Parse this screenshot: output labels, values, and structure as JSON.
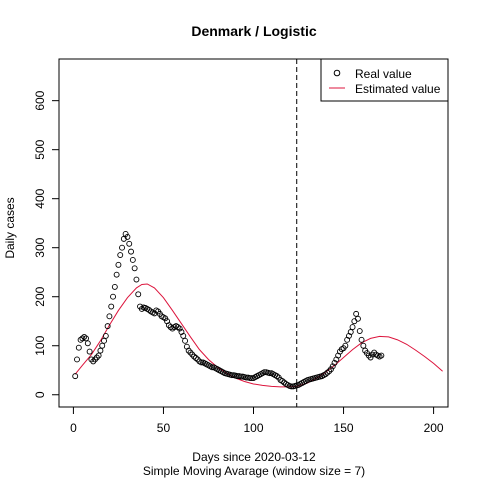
{
  "chart_data": {
    "type": "line",
    "title": "Denmark / Logistic",
    "xlabel": "Days since 2020-03-12",
    "subtitle": "Simple Moving Avarage (window size = 7)",
    "ylabel": "Daily cases",
    "xlim": [
      -8,
      208
    ],
    "ylim": [
      -25,
      685
    ],
    "x_ticks": [
      0,
      50,
      100,
      150,
      200
    ],
    "y_ticks": [
      0,
      100,
      200,
      300,
      400,
      500,
      600
    ],
    "grid": false,
    "legend_position": "top-right",
    "split_day": 124,
    "series": [
      {
        "name": "Real value",
        "style": "points",
        "color": "#000000",
        "points": [
          [
            1,
            38
          ],
          [
            2,
            72
          ],
          [
            3,
            96
          ],
          [
            4,
            112
          ],
          [
            5,
            115
          ],
          [
            6,
            118
          ],
          [
            7,
            115
          ],
          [
            8,
            105
          ],
          [
            9,
            88
          ],
          [
            10,
            72
          ],
          [
            11,
            68
          ],
          [
            12,
            72
          ],
          [
            13,
            76
          ],
          [
            14,
            80
          ],
          [
            15,
            90
          ],
          [
            16,
            100
          ],
          [
            17,
            110
          ],
          [
            18,
            120
          ],
          [
            19,
            140
          ],
          [
            20,
            160
          ],
          [
            21,
            180
          ],
          [
            22,
            200
          ],
          [
            23,
            220
          ],
          [
            24,
            245
          ],
          [
            25,
            265
          ],
          [
            26,
            285
          ],
          [
            27,
            300
          ],
          [
            28,
            318
          ],
          [
            29,
            328
          ],
          [
            30,
            322
          ],
          [
            31,
            308
          ],
          [
            32,
            292
          ],
          [
            33,
            275
          ],
          [
            34,
            258
          ],
          [
            35,
            235
          ],
          [
            36,
            205
          ],
          [
            37,
            180
          ],
          [
            38,
            175
          ],
          [
            39,
            178
          ],
          [
            40,
            177
          ],
          [
            41,
            175
          ],
          [
            42,
            173
          ],
          [
            43,
            170
          ],
          [
            44,
            168
          ],
          [
            45,
            166
          ],
          [
            46,
            172
          ],
          [
            47,
            170
          ],
          [
            48,
            165
          ],
          [
            49,
            160
          ],
          [
            50,
            158
          ],
          [
            51,
            156
          ],
          [
            52,
            150
          ],
          [
            53,
            142
          ],
          [
            54,
            138
          ],
          [
            55,
            135
          ],
          [
            56,
            138
          ],
          [
            57,
            140
          ],
          [
            58,
            138
          ],
          [
            59,
            135
          ],
          [
            60,
            128
          ],
          [
            61,
            120
          ],
          [
            62,
            110
          ],
          [
            63,
            98
          ],
          [
            64,
            90
          ],
          [
            65,
            86
          ],
          [
            66,
            82
          ],
          [
            67,
            78
          ],
          [
            68,
            75
          ],
          [
            69,
            72
          ],
          [
            70,
            68
          ],
          [
            71,
            66
          ],
          [
            72,
            66
          ],
          [
            73,
            64
          ],
          [
            74,
            62
          ],
          [
            75,
            60
          ],
          [
            76,
            58
          ],
          [
            77,
            56
          ],
          [
            78,
            56
          ],
          [
            79,
            54
          ],
          [
            80,
            52
          ],
          [
            81,
            50
          ],
          [
            82,
            48
          ],
          [
            83,
            46
          ],
          [
            84,
            44
          ],
          [
            85,
            43
          ],
          [
            86,
            42
          ],
          [
            87,
            41
          ],
          [
            88,
            40
          ],
          [
            89,
            40
          ],
          [
            90,
            39
          ],
          [
            91,
            38
          ],
          [
            92,
            38
          ],
          [
            93,
            37
          ],
          [
            94,
            37
          ],
          [
            95,
            36
          ],
          [
            96,
            35
          ],
          [
            97,
            35
          ],
          [
            98,
            34
          ],
          [
            99,
            34
          ],
          [
            100,
            34
          ],
          [
            101,
            36
          ],
          [
            102,
            38
          ],
          [
            103,
            40
          ],
          [
            104,
            42
          ],
          [
            105,
            44
          ],
          [
            106,
            46
          ],
          [
            107,
            46
          ],
          [
            108,
            45
          ],
          [
            109,
            44
          ],
          [
            110,
            44
          ],
          [
            111,
            42
          ],
          [
            112,
            40
          ],
          [
            113,
            38
          ],
          [
            114,
            35
          ],
          [
            115,
            30
          ],
          [
            116,
            28
          ],
          [
            117,
            25
          ],
          [
            118,
            22
          ],
          [
            119,
            20
          ],
          [
            120,
            18
          ],
          [
            121,
            17
          ],
          [
            122,
            17
          ],
          [
            123,
            18
          ],
          [
            124,
            19
          ],
          [
            125,
            20
          ],
          [
            126,
            22
          ],
          [
            127,
            24
          ],
          [
            128,
            26
          ],
          [
            129,
            28
          ],
          [
            130,
            30
          ],
          [
            131,
            31
          ],
          [
            132,
            32
          ],
          [
            133,
            33
          ],
          [
            134,
            34
          ],
          [
            135,
            35
          ],
          [
            136,
            36
          ],
          [
            137,
            37
          ],
          [
            138,
            38
          ],
          [
            139,
            40
          ],
          [
            140,
            42
          ],
          [
            141,
            45
          ],
          [
            142,
            48
          ],
          [
            143,
            52
          ],
          [
            144,
            58
          ],
          [
            145,
            65
          ],
          [
            146,
            72
          ],
          [
            147,
            80
          ],
          [
            148,
            88
          ],
          [
            149,
            93
          ],
          [
            150,
            95
          ],
          [
            151,
            100
          ],
          [
            152,
            112
          ],
          [
            153,
            120
          ],
          [
            154,
            128
          ],
          [
            155,
            138
          ],
          [
            156,
            150
          ],
          [
            157,
            165
          ],
          [
            158,
            155
          ],
          [
            159,
            130
          ],
          [
            160,
            112
          ],
          [
            161,
            100
          ],
          [
            162,
            90
          ],
          [
            163,
            85
          ],
          [
            164,
            80
          ],
          [
            165,
            76
          ],
          [
            166,
            82
          ],
          [
            167,
            86
          ],
          [
            168,
            82
          ],
          [
            169,
            80
          ],
          [
            170,
            78
          ],
          [
            171,
            80
          ]
        ]
      },
      {
        "name": "Estimated value",
        "style": "line",
        "color": "#dc143c",
        "points": [
          [
            1,
            42
          ],
          [
            5,
            60
          ],
          [
            10,
            82
          ],
          [
            15,
            110
          ],
          [
            20,
            142
          ],
          [
            25,
            172
          ],
          [
            30,
            198
          ],
          [
            35,
            218
          ],
          [
            38,
            225
          ],
          [
            41,
            226
          ],
          [
            45,
            218
          ],
          [
            50,
            198
          ],
          [
            55,
            172
          ],
          [
            60,
            145
          ],
          [
            65,
            118
          ],
          [
            70,
            92
          ],
          [
            75,
            72
          ],
          [
            80,
            56
          ],
          [
            85,
            44
          ],
          [
            90,
            34
          ],
          [
            95,
            27
          ],
          [
            100,
            22
          ],
          [
            105,
            19
          ],
          [
            110,
            17
          ],
          [
            115,
            16
          ],
          [
            120,
            16
          ],
          [
            124,
            17
          ],
          [
            130,
            24
          ],
          [
            135,
            34
          ],
          [
            140,
            46
          ],
          [
            145,
            60
          ],
          [
            150,
            76
          ],
          [
            155,
            92
          ],
          [
            160,
            106
          ],
          [
            165,
            115
          ],
          [
            170,
            119
          ],
          [
            175,
            118
          ],
          [
            180,
            112
          ],
          [
            185,
            103
          ],
          [
            190,
            91
          ],
          [
            195,
            78
          ],
          [
            200,
            64
          ],
          [
            205,
            48
          ]
        ]
      }
    ]
  }
}
